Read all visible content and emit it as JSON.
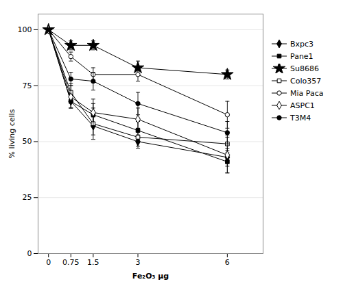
{
  "chart_data": {
    "type": "line",
    "xlabel": "Fe₂O₃ μg",
    "ylabel": "% living cells",
    "x": [
      0,
      0.75,
      1.5,
      3,
      6
    ],
    "color": "black",
    "series": [
      {
        "name": "Bxpc3",
        "values": [
          100,
          68,
          57,
          50,
          43
        ],
        "yerr": [
          0,
          3,
          4,
          3,
          4
        ],
        "marker": "diamond"
      },
      {
        "name": "Pane1",
        "values": [
          100,
          68,
          62,
          55,
          41
        ],
        "yerr": [
          0,
          3,
          5,
          4,
          5
        ],
        "marker": "square"
      },
      {
        "name": "Su8686",
        "values": [
          100,
          93,
          93,
          83,
          80
        ],
        "yerr": [
          0,
          2,
          2,
          3,
          2
        ],
        "marker": "star"
      },
      {
        "name": "Colo357",
        "values": [
          100,
          72,
          58,
          52,
          49
        ],
        "yerr": [
          0,
          4,
          7,
          4,
          4
        ],
        "marker": "square-open"
      },
      {
        "name": "Mia Paca",
        "values": [
          100,
          88,
          80,
          80,
          62
        ],
        "yerr": [
          0,
          2,
          3,
          3,
          6
        ],
        "marker": "circle-open"
      },
      {
        "name": "ASPC1",
        "values": [
          100,
          70,
          63,
          60,
          44
        ],
        "yerr": [
          0,
          5,
          6,
          5,
          8
        ],
        "marker": "diamond-open"
      },
      {
        "name": "T3M4",
        "values": [
          100,
          78,
          77,
          67,
          54
        ],
        "yerr": [
          0,
          3,
          4,
          5,
          5
        ],
        "marker": "circle"
      }
    ],
    "xlim": [
      -0.35,
      7.2
    ],
    "ylim": [
      0,
      107
    ],
    "xticks": [
      0,
      0.75,
      1.5,
      3,
      6
    ],
    "yticks": [
      0,
      25,
      50,
      75,
      100
    ],
    "grid": true,
    "legend": "right"
  }
}
